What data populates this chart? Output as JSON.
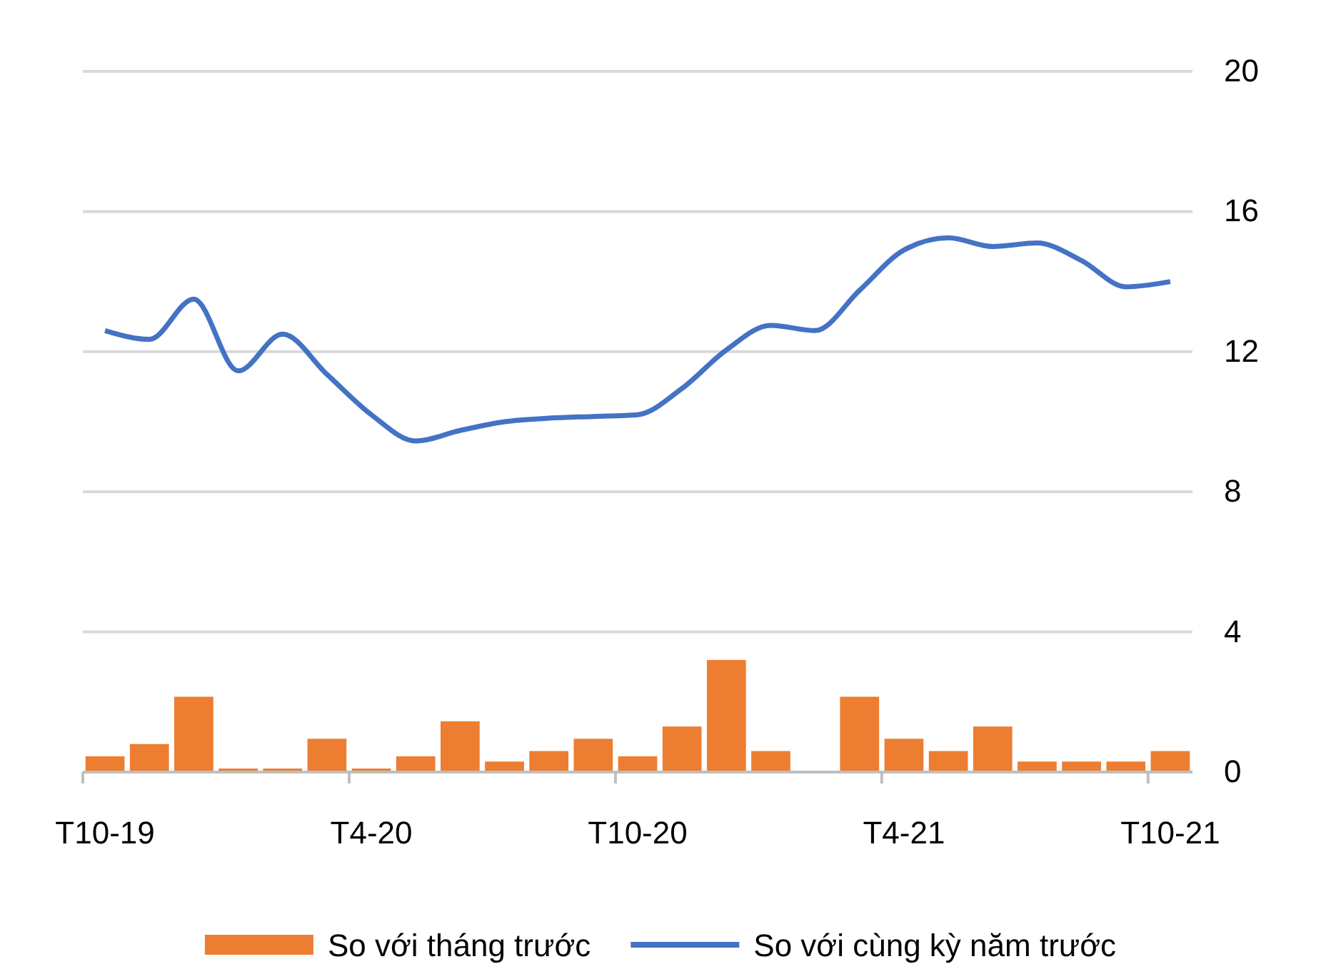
{
  "chart_data": {
    "type": "bar",
    "categories": [
      "T10-19",
      null,
      null,
      null,
      null,
      null,
      "T4-20",
      null,
      null,
      null,
      null,
      null,
      "T10-20",
      null,
      null,
      null,
      null,
      null,
      "T4-21",
      null,
      null,
      null,
      null,
      null,
      "T10-21"
    ],
    "series": [
      {
        "name": "So với tháng trước",
        "color": "#ed7d31",
        "values": [
          0.45,
          0.8,
          2.15,
          0.1,
          0.1,
          0.95,
          0.1,
          0.45,
          1.45,
          0.3,
          0.6,
          0.95,
          0.45,
          1.3,
          3.2,
          0.6,
          0,
          2.15,
          0.95,
          0.6,
          1.3,
          0.3,
          0.3,
          0.3,
          0.6
        ]
      },
      {
        "name": "So với cùng kỳ năm trước",
        "type": "line",
        "color": "#4472c4",
        "values": [
          12.6,
          12.35,
          13.5,
          11.45,
          12.5,
          11.35,
          10.2,
          9.45,
          9.75,
          10.0,
          10.1,
          10.15,
          10.2,
          10.95,
          12.05,
          12.75,
          12.6,
          13.75,
          14.9,
          15.25,
          15.0,
          15.1,
          14.6,
          13.85,
          14.0
        ]
      }
    ],
    "ylim": [
      0,
      20
    ],
    "yticks": [
      0,
      4,
      8,
      12,
      16,
      20
    ],
    "grid": "y",
    "legend": "bottom",
    "line_style": "solid",
    "marker": "none"
  }
}
